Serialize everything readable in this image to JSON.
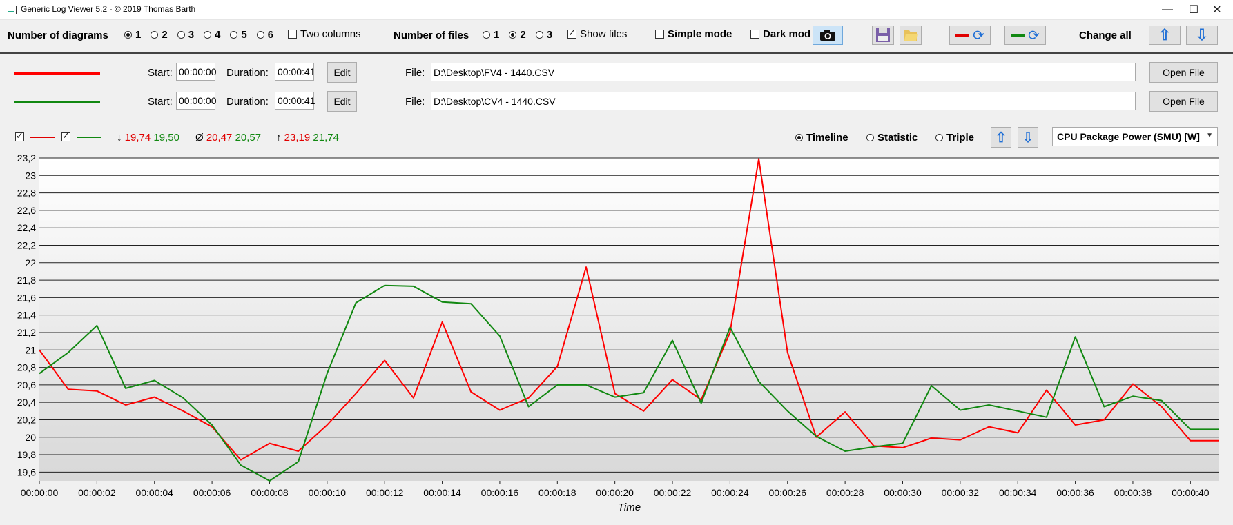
{
  "window": {
    "title": "Generic Log Viewer 5.2 - © 2019 Thomas Barth",
    "minimize": "—",
    "maximize": "☐",
    "close": "✕"
  },
  "toolbar": {
    "num_diagrams_label": "Number of diagrams",
    "diagram_options": [
      "1",
      "2",
      "3",
      "4",
      "5",
      "6"
    ],
    "diagram_selected": "1",
    "two_columns_label": "Two columns",
    "two_columns_checked": false,
    "num_files_label": "Number of files",
    "file_options": [
      "1",
      "2",
      "3"
    ],
    "files_selected": "2",
    "show_files_label": "Show files",
    "show_files_checked": true,
    "simple_mode_label": "Simple mode",
    "simple_mode_checked": false,
    "dark_mode_label": "Dark mod",
    "dark_mode_checked": false,
    "change_all_label": "Change all"
  },
  "files": [
    {
      "color": "#ff0000",
      "start_label": "Start:",
      "start_value": "00:00:00",
      "duration_label": "Duration:",
      "duration_value": "00:00:41",
      "edit_label": "Edit",
      "file_label": "File:",
      "file_path": "D:\\Desktop\\FV4 - 1440.CSV",
      "open_label": "Open File"
    },
    {
      "color": "#118811",
      "start_label": "Start:",
      "start_value": "00:00:00",
      "duration_label": "Duration:",
      "duration_value": "00:00:41",
      "edit_label": "Edit",
      "file_label": "File:",
      "file_path": "D:\\Desktop\\CV4 - 1440.CSV",
      "open_label": "Open File"
    }
  ],
  "stats": {
    "min_symbol": "↓",
    "min_red": "19,74",
    "min_green": "19,50",
    "avg_symbol": "Ø",
    "avg_red": "20,47",
    "avg_green": "20,57",
    "max_symbol": "↑",
    "max_red": "23,19",
    "max_green": "21,74"
  },
  "view_modes": {
    "options": [
      "Timeline",
      "Statistic",
      "Triple"
    ],
    "selected": "Timeline"
  },
  "metric_select": {
    "value": "CPU Package Power (SMU) [W]"
  },
  "chart_data": {
    "type": "line",
    "xlabel": "Time",
    "ylabel": "",
    "ylim": [
      19.5,
      23.2
    ],
    "y_ticks": [
      "23,2",
      "23",
      "22,8",
      "22,6",
      "22,4",
      "22,2",
      "22",
      "21,8",
      "21,6",
      "21,4",
      "21,2",
      "21",
      "20,8",
      "20,6",
      "20,4",
      "20,2",
      "20",
      "19,8",
      "19,6"
    ],
    "x_ticks": [
      "00:00:00",
      "00:00:02",
      "00:00:04",
      "00:00:06",
      "00:00:08",
      "00:00:10",
      "00:00:12",
      "00:00:14",
      "00:00:16",
      "00:00:18",
      "00:00:20",
      "00:00:22",
      "00:00:24",
      "00:00:26",
      "00:00:28",
      "00:00:30",
      "00:00:32",
      "00:00:34",
      "00:00:36",
      "00:00:38",
      "00:00:40"
    ],
    "x_seconds_range": [
      0,
      41
    ],
    "grid": true,
    "series": [
      {
        "color": "#ff0000",
        "x": [
          0,
          1,
          2,
          3,
          4,
          5,
          6,
          7,
          8,
          9,
          10,
          11,
          12,
          13,
          14,
          15,
          16,
          17,
          18,
          19,
          20,
          21,
          22,
          23,
          24,
          25,
          26,
          27,
          28,
          29,
          30,
          31,
          32,
          33,
          34,
          35,
          36,
          37,
          38,
          39,
          40,
          41
        ],
        "values": [
          21.0,
          20.55,
          20.53,
          20.37,
          20.46,
          20.3,
          20.12,
          19.74,
          19.93,
          19.84,
          20.14,
          20.5,
          20.88,
          20.45,
          21.32,
          20.52,
          20.31,
          20.45,
          20.81,
          21.95,
          20.5,
          20.3,
          20.66,
          20.43,
          21.2,
          23.19,
          20.97,
          20.0,
          20.29,
          19.9,
          19.88,
          19.99,
          19.97,
          20.12,
          20.05,
          20.54,
          20.14,
          20.2,
          20.61,
          20.35,
          19.96,
          19.96
        ]
      },
      {
        "color": "#118811",
        "x": [
          0,
          1,
          2,
          3,
          4,
          5,
          6,
          7,
          8,
          9,
          10,
          11,
          12,
          13,
          14,
          15,
          16,
          17,
          18,
          19,
          20,
          21,
          22,
          23,
          24,
          25,
          26,
          27,
          28,
          29,
          30,
          31,
          32,
          33,
          34,
          35,
          36,
          37,
          38,
          39,
          40,
          41
        ],
        "values": [
          20.73,
          20.97,
          21.28,
          20.56,
          20.65,
          20.45,
          20.14,
          19.68,
          19.5,
          19.72,
          20.73,
          21.54,
          21.74,
          21.73,
          21.55,
          21.53,
          21.16,
          20.35,
          20.6,
          20.6,
          20.46,
          20.51,
          21.11,
          20.39,
          21.26,
          20.64,
          20.3,
          20.01,
          19.84,
          19.89,
          19.93,
          20.59,
          20.31,
          20.37,
          20.3,
          20.23,
          21.15,
          20.35,
          20.47,
          20.42,
          20.09,
          20.09
        ]
      }
    ]
  }
}
